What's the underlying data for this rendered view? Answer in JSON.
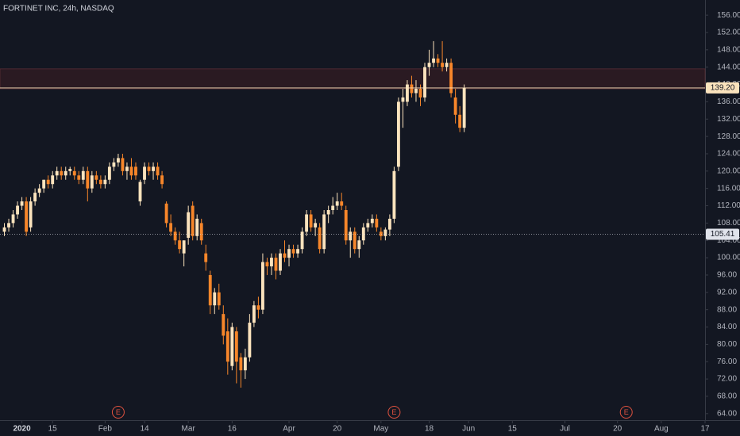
{
  "chart_data": {
    "type": "candlestick",
    "title": "FORTINET INC, 24h, NASDAQ",
    "up_color": "#fbe3bd",
    "down_color": "#f7862a",
    "candles": [
      [
        106,
        108,
        105,
        107
      ],
      [
        107,
        109,
        106,
        108
      ],
      [
        108,
        111,
        107,
        110
      ],
      [
        110,
        113,
        109,
        112
      ],
      [
        112,
        114,
        111,
        113
      ],
      [
        113,
        114,
        105,
        106
      ],
      [
        107,
        114,
        106,
        113
      ],
      [
        113,
        116,
        112,
        115
      ],
      [
        115,
        117,
        114,
        116
      ],
      [
        116,
        118,
        115,
        118
      ],
      [
        118,
        119,
        116,
        117
      ],
      [
        117,
        120,
        116,
        119
      ],
      [
        119,
        121,
        118,
        120
      ],
      [
        120,
        121,
        118,
        119
      ],
      [
        119,
        121,
        118,
        120
      ],
      [
        120,
        121,
        119,
        120.5
      ],
      [
        120,
        121,
        118,
        119
      ],
      [
        119,
        120,
        117,
        118
      ],
      [
        118,
        121,
        117,
        120
      ],
      [
        120,
        121,
        113,
        116
      ],
      [
        116,
        120,
        115,
        119
      ],
      [
        119,
        120,
        117,
        118
      ],
      [
        118,
        119,
        116,
        117
      ],
      [
        117,
        119,
        116,
        118
      ],
      [
        118,
        122,
        117,
        121
      ],
      [
        121,
        123,
        120,
        122
      ],
      [
        122,
        124,
        121,
        123
      ],
      [
        123,
        124,
        119,
        120
      ],
      [
        120,
        122,
        118,
        121
      ],
      [
        121,
        123,
        118,
        119
      ],
      [
        121,
        122,
        118,
        119
      ],
      [
        113,
        118,
        112,
        117.5
      ],
      [
        118,
        122,
        117,
        121
      ],
      [
        121,
        122,
        119,
        120
      ],
      [
        120,
        122,
        118,
        121
      ],
      [
        121,
        122,
        118,
        119
      ],
      [
        119,
        120,
        116,
        117
      ],
      [
        112.5,
        113,
        107,
        108
      ],
      [
        108,
        110,
        105,
        106
      ],
      [
        106,
        107,
        103,
        104
      ],
      [
        104,
        106,
        101,
        102
      ],
      [
        101,
        104,
        98,
        104
      ],
      [
        104.6,
        112,
        103,
        110.5
      ],
      [
        112,
        113,
        104,
        105
      ],
      [
        105,
        110,
        104,
        109
      ],
      [
        108,
        109,
        103,
        104
      ],
      [
        101,
        103,
        97,
        99
      ],
      [
        96,
        97,
        87,
        89
      ],
      [
        89,
        93,
        87,
        92
      ],
      [
        92,
        94,
        88,
        89
      ],
      [
        87,
        89,
        80,
        82
      ],
      [
        83,
        86,
        73,
        76
      ],
      [
        75,
        85,
        74,
        84
      ],
      [
        83,
        84,
        71,
        76
      ],
      [
        77,
        78,
        70,
        74
      ],
      [
        74,
        79,
        72,
        77
      ],
      [
        77,
        87,
        76,
        85
      ],
      [
        85,
        90,
        84,
        89
      ],
      [
        89,
        91,
        86,
        88
      ],
      [
        88,
        101,
        87,
        99
      ],
      [
        99,
        100,
        96,
        98
      ],
      [
        98,
        101,
        96,
        100
      ],
      [
        100,
        101,
        95,
        97
      ],
      [
        97,
        102,
        96,
        101
      ],
      [
        101,
        104,
        99,
        100
      ],
      [
        100,
        103,
        98,
        102
      ],
      [
        102,
        103,
        100,
        101
      ],
      [
        101,
        103,
        100,
        102
      ],
      [
        102,
        107,
        101,
        106
      ],
      [
        106,
        111,
        105,
        110
      ],
      [
        110,
        111,
        106,
        107
      ],
      [
        107,
        109,
        105,
        108
      ],
      [
        107,
        108,
        101,
        102
      ],
      [
        102,
        111,
        101,
        110
      ],
      [
        110,
        112,
        108,
        111
      ],
      [
        111,
        114,
        110,
        112
      ],
      [
        112,
        115,
        111,
        113
      ],
      [
        113,
        115,
        111,
        112
      ],
      [
        111,
        112,
        103,
        104
      ],
      [
        104,
        107,
        100,
        106
      ],
      [
        106,
        107,
        101,
        102
      ],
      [
        102,
        105,
        100,
        104
      ],
      [
        104,
        108,
        103,
        107
      ],
      [
        107,
        109,
        106,
        108
      ],
      [
        108,
        110,
        107,
        109
      ],
      [
        109,
        110,
        106,
        107
      ],
      [
        106,
        107,
        104,
        105
      ],
      [
        105,
        107,
        104,
        106.5
      ],
      [
        106.5,
        110,
        105,
        109
      ],
      [
        109,
        121,
        108,
        120
      ],
      [
        121,
        137,
        120,
        136
      ],
      [
        136,
        139,
        130,
        137
      ],
      [
        136,
        141,
        135,
        140
      ],
      [
        140,
        142,
        137,
        138
      ],
      [
        138,
        141,
        136,
        139
      ],
      [
        139,
        140,
        135,
        137
      ],
      [
        137,
        145,
        136,
        144
      ],
      [
        144,
        148,
        142,
        145
      ],
      [
        145,
        150,
        144,
        146
      ],
      [
        146,
        147,
        144,
        145
      ],
      [
        145,
        150,
        143,
        144
      ],
      [
        144,
        146,
        143,
        145
      ],
      [
        145,
        146,
        137,
        138
      ],
      [
        137,
        139,
        131,
        133
      ],
      [
        133,
        135,
        129,
        130
      ],
      [
        130,
        140,
        129,
        139.2
      ]
    ],
    "xlim": [
      -1,
      160
    ],
    "xticks": [
      {
        "value": 4,
        "label": "2020"
      },
      {
        "value": 11,
        "label": "15"
      },
      {
        "value": 23,
        "label": "Feb"
      },
      {
        "value": 32,
        "label": "14"
      },
      {
        "value": 42,
        "label": "Mar"
      },
      {
        "value": 52,
        "label": "16"
      },
      {
        "value": 65,
        "label": "Apr"
      },
      {
        "value": 76,
        "label": "20"
      },
      {
        "value": 86,
        "label": "May"
      },
      {
        "value": 97,
        "label": "18"
      },
      {
        "value": 106,
        "label": "Jun"
      },
      {
        "value": 116,
        "label": "15"
      },
      {
        "value": 128,
        "label": "Jul"
      },
      {
        "value": 140,
        "label": "20"
      },
      {
        "value": 150,
        "label": "Aug"
      },
      {
        "value": 160,
        "label": "17"
      }
    ],
    "ylim": [
      62.5,
      159.5
    ],
    "yticks": [
      {
        "value": 64,
        "label": "64.00"
      },
      {
        "value": 68,
        "label": "68.00"
      },
      {
        "value": 72,
        "label": "72.00"
      },
      {
        "value": 76,
        "label": "76.00"
      },
      {
        "value": 80,
        "label": "80.00"
      },
      {
        "value": 84,
        "label": "84.00"
      },
      {
        "value": 88,
        "label": "88.00"
      },
      {
        "value": 92,
        "label": "92.00"
      },
      {
        "value": 96,
        "label": "96.00"
      },
      {
        "value": 100,
        "label": "100.00"
      },
      {
        "value": 104,
        "label": "104.00"
      },
      {
        "value": 108,
        "label": "108.00"
      },
      {
        "value": 112,
        "label": "112.00"
      },
      {
        "value": 116,
        "label": "116.00"
      },
      {
        "value": 120,
        "label": "120.00"
      },
      {
        "value": 124,
        "label": "124.00"
      },
      {
        "value": 128,
        "label": "128.00"
      },
      {
        "value": 132,
        "label": "132.00"
      },
      {
        "value": 136,
        "label": "136.00"
      },
      {
        "value": 140,
        "label": "140.00"
      },
      {
        "value": 144,
        "label": "144.00"
      },
      {
        "value": 148,
        "label": "148.00"
      },
      {
        "value": 152,
        "label": "152.00"
      },
      {
        "value": 156,
        "label": "156.00"
      }
    ],
    "zone": [
      139,
      143.6
    ],
    "price_lines": [
      {
        "value": 139.2,
        "label": "139.20"
      },
      {
        "value": 105.41,
        "label": "105.41"
      }
    ],
    "events": [
      {
        "x": 26,
        "label": "E"
      },
      {
        "x": 89,
        "label": "E"
      },
      {
        "x": 142,
        "label": "E"
      }
    ]
  }
}
